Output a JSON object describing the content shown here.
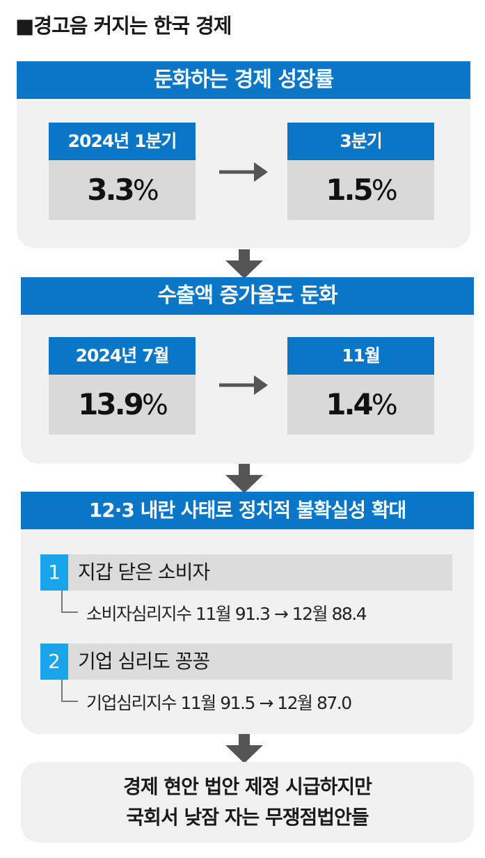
{
  "title": "■경고음 커지는 한국 경제",
  "sections": [
    {
      "header": "둔화하는 경제 성장률",
      "from": {
        "label": "2024년 1분기",
        "value": "3.3",
        "unit": "%"
      },
      "to": {
        "label": "3분기",
        "value": "1.5",
        "unit": "%"
      }
    },
    {
      "header": "수출액 증가율도 둔화",
      "from": {
        "label": "2024년 7월",
        "value": "13.9",
        "unit": "%"
      },
      "to": {
        "label": "11월",
        "value": "1.4",
        "unit": "%"
      }
    }
  ],
  "section3": {
    "header": "12·3 내란 사태로 정치적 불확실성 확대",
    "items": [
      {
        "num": "1",
        "title": "지갑 닫은 소비자",
        "detail": "소비자심리지수 11월 91.3 → 12월 88.4"
      },
      {
        "num": "2",
        "title": "기업 심리도 꽁꽁",
        "detail": "기업심리지수 11월 91.5 → 12월 87.0"
      }
    ]
  },
  "conclusion": {
    "line1": "경제 현안 법안 제정 시급하지만",
    "line2": "국회서 낮잠 자는 무쟁점법안들"
  },
  "colors": {
    "header": "#0a76c8",
    "badge": "#1aa5ea",
    "panel": "#f1f1f1",
    "value_box": "#d9d9d9",
    "arrow": "#555555"
  }
}
